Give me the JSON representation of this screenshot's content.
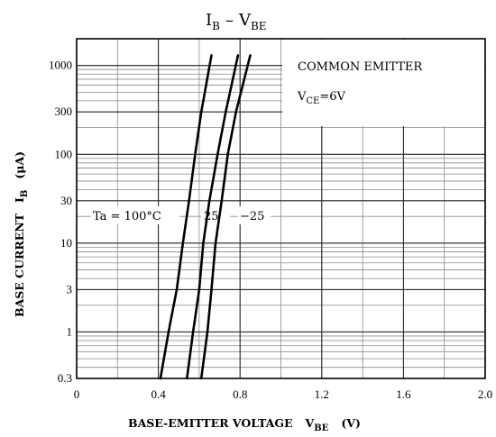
{
  "chart_data": {
    "type": "line",
    "title": {
      "main": "I",
      "sub": "B",
      "dash": "–",
      "main2": "V",
      "sub2": "BE"
    },
    "xlabel": {
      "main": "BASE-EMITTER VOLTAGE",
      "sym": "V",
      "sub": "BE",
      "unit": "(V)"
    },
    "ylabel": {
      "main": "BASE CURRENT",
      "sym": "I",
      "sub": "B",
      "unit": "(μA)"
    },
    "x_ticks": [
      {
        "v": 0,
        "label": "0"
      },
      {
        "v": 0.4,
        "label": "0.4"
      },
      {
        "v": 0.8,
        "label": "0.8"
      },
      {
        "v": 1.2,
        "label": "1.2"
      },
      {
        "v": 1.6,
        "label": "1.6"
      },
      {
        "v": 2.0,
        "label": "2.0"
      }
    ],
    "y_ticks": [
      {
        "v": 0.3,
        "label": "0.3"
      },
      {
        "v": 1,
        "label": "1"
      },
      {
        "v": 3,
        "label": "3"
      },
      {
        "v": 10,
        "label": "10"
      },
      {
        "v": 30,
        "label": "30"
      },
      {
        "v": 100,
        "label": "100"
      },
      {
        "v": 300,
        "label": "300"
      },
      {
        "v": 1000,
        "label": "1000"
      }
    ],
    "xlim": [
      0,
      2.0
    ],
    "ylim": [
      0.3,
      2000
    ],
    "y_scale": "log",
    "grid": true,
    "conditions": {
      "line1": "COMMON EMITTER",
      "vce_sym": "V",
      "vce_sub": "CE",
      "vce_val": "=6V"
    },
    "temp_labels": {
      "ta": "Ta = 100°C",
      "t2": "25",
      "t3": "−25"
    },
    "series": [
      {
        "points": [
          [
            0.41,
            0.3
          ],
          [
            0.45,
            1
          ],
          [
            0.49,
            3
          ],
          [
            0.52,
            10
          ],
          [
            0.55,
            30
          ],
          [
            0.58,
            100
          ],
          [
            0.61,
            300
          ],
          [
            0.66,
            1300
          ]
        ]
      },
      {
        "points": [
          [
            0.54,
            0.3
          ],
          [
            0.57,
            1
          ],
          [
            0.6,
            3
          ],
          [
            0.62,
            10
          ],
          [
            0.65,
            30
          ],
          [
            0.69,
            100
          ],
          [
            0.73,
            300
          ],
          [
            0.79,
            1300
          ]
        ]
      },
      {
        "points": [
          [
            0.61,
            0.3
          ],
          [
            0.64,
            1
          ],
          [
            0.66,
            3
          ],
          [
            0.68,
            10
          ],
          [
            0.71,
            30
          ],
          [
            0.74,
            100
          ],
          [
            0.78,
            300
          ],
          [
            0.85,
            1300
          ]
        ]
      }
    ]
  }
}
